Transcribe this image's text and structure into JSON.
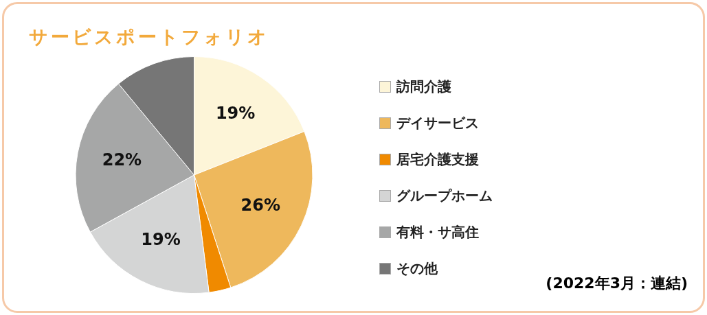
{
  "chart_data": {
    "type": "pie",
    "title": "サービスポートフォリオ",
    "categories": [
      "訪問介護",
      "デイサービス",
      "居宅介護支援",
      "グループホーム",
      "有料・サ高住",
      "その他"
    ],
    "values": [
      19,
      26,
      3,
      19,
      22,
      11
    ],
    "colors": [
      "#fdf5d8",
      "#eeb85c",
      "#f08a00",
      "#d4d5d5",
      "#a6a7a7",
      "#767676"
    ],
    "value_labels": [
      "19%",
      "26%",
      null,
      "19%",
      "22%",
      null
    ],
    "legend": "right",
    "annotations": [
      "(2022年3月：連結)"
    ]
  }
}
